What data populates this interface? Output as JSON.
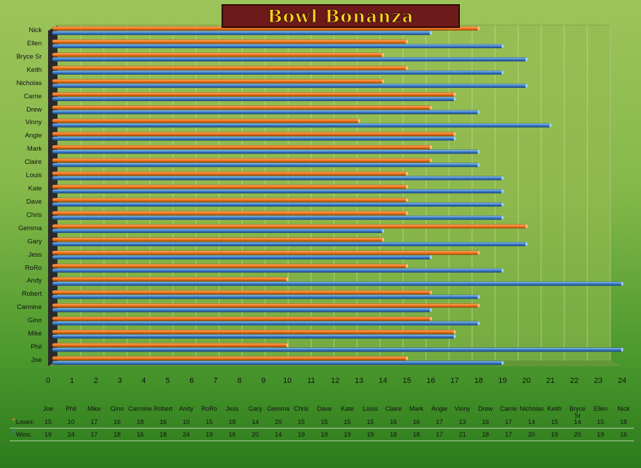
{
  "title": "Bowl Bonanza",
  "chart_data": {
    "type": "bar",
    "orientation": "horizontal",
    "categories": [
      "Joe",
      "Phil",
      "Mike",
      "Gino",
      "Carmine",
      "Robert",
      "Andy",
      "RoRo",
      "Jess",
      "Gary",
      "Gemma",
      "Chris",
      "Dave",
      "Kate",
      "Louis",
      "Claire",
      "Mark",
      "Angie",
      "Vinny",
      "Drew",
      "Carrie",
      "Nicholas",
      "Keith",
      "Bryce Sr",
      "Ellen",
      "Nick"
    ],
    "series": [
      {
        "name": "Loses:",
        "color": "#f07820",
        "values": [
          15,
          10,
          17,
          16,
          18,
          16,
          10,
          15,
          18,
          14,
          20,
          15,
          15,
          15,
          15,
          16,
          16,
          17,
          13,
          16,
          17,
          14,
          15,
          14,
          15,
          18
        ]
      },
      {
        "name": "Wins:",
        "color": "#3a7cc8",
        "values": [
          19,
          24,
          17,
          18,
          16,
          18,
          24,
          19,
          16,
          20,
          14,
          19,
          19,
          19,
          19,
          18,
          18,
          17,
          21,
          18,
          17,
          20,
          19,
          20,
          19,
          16
        ]
      }
    ],
    "xlim": [
      0,
      24
    ],
    "xticks": [
      "0",
      "1",
      "2",
      "3",
      "4",
      "5",
      "6",
      "7",
      "8",
      "9",
      "10",
      "11",
      "12",
      "13",
      "14",
      "15",
      "16",
      "17",
      "18",
      "19",
      "20",
      "21",
      "22",
      "23",
      "24"
    ],
    "grid": true,
    "data_table": true
  }
}
